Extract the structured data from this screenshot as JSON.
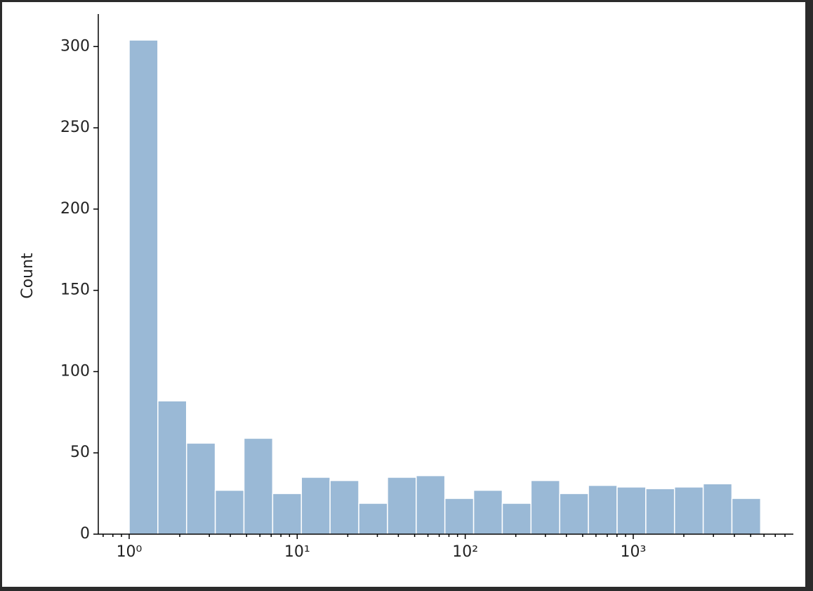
{
  "chart_data": {
    "type": "histogram",
    "y_label": "Count",
    "x_scale": "log",
    "color": "#9ab9d6",
    "edge_color": "#ffffff",
    "bins": [
      1,
      1.482,
      2.196,
      3.254,
      4.822,
      7.146,
      10.59,
      15.69,
      23.26,
      34.46,
      51.07,
      75.68,
      112.2,
      166.2,
      246.3,
      365.0,
      540.9,
      801.6,
      1188,
      1760,
      2609,
      3866,
      5729
    ],
    "values": [
      304,
      82,
      56,
      27,
      59,
      25,
      35,
      33,
      19,
      35,
      36,
      22,
      27,
      19,
      33,
      25,
      30,
      29,
      28,
      29,
      31,
      22
    ],
    "xlim": [
      0.655,
      8970
    ],
    "ylim": [
      0,
      320
    ],
    "xticks": [
      {
        "value": 1,
        "label": "10⁰"
      },
      {
        "value": 10,
        "label": "10¹"
      },
      {
        "value": 100,
        "label": "10²"
      },
      {
        "value": 1000,
        "label": "10³"
      }
    ],
    "xminorticks": [
      0.7,
      0.8,
      0.9,
      2,
      3,
      4,
      5,
      6,
      7,
      8,
      9,
      20,
      30,
      40,
      50,
      60,
      70,
      80,
      90,
      200,
      300,
      400,
      500,
      600,
      700,
      800,
      900,
      2000,
      3000,
      4000,
      5000,
      6000,
      7000,
      8000
    ],
    "yticks": [
      0,
      50,
      100,
      150,
      200,
      250,
      300
    ]
  }
}
